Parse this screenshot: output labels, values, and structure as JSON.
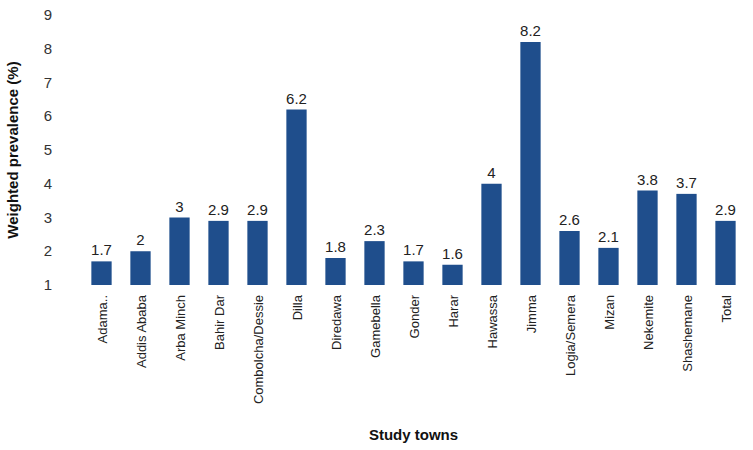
{
  "chart_data": {
    "type": "bar",
    "x_label": "Study towns",
    "y_label": "Weighted prevalence (%)",
    "categories": [
      "Adama..",
      "Addis Ababa",
      "Arba Minch",
      "Bahir Dar",
      "Combolcha/Dessie",
      "Dilla",
      "Diredawa",
      "Gamebella",
      "Gonder",
      "Harar",
      "Hawassa",
      "Jimma",
      "Logia/Semera",
      "Mizan",
      "Nekemite",
      "Shashemane",
      "Total"
    ],
    "values": [
      1.7,
      2,
      3,
      2.9,
      2.9,
      6.2,
      1.8,
      2.3,
      1.7,
      1.6,
      4,
      8.2,
      2.6,
      2.1,
      3.8,
      3.7,
      2.9
    ],
    "color": "#1f4e8c",
    "ylim": [
      1,
      9
    ],
    "yticks": [
      1,
      2,
      3,
      4,
      5,
      6,
      7,
      8,
      9
    ],
    "grid": false,
    "data_labels": true
  }
}
